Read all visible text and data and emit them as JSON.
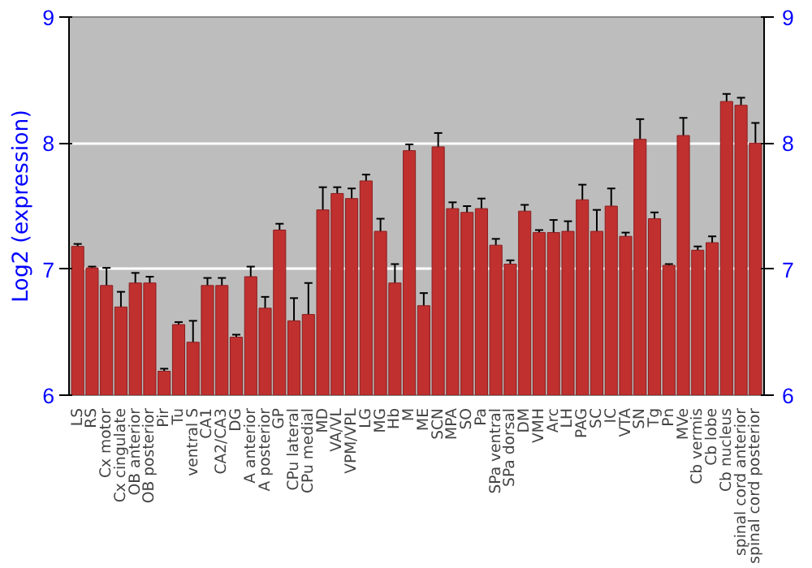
{
  "chart_data": {
    "type": "bar",
    "ylabel": "Log2 (expression)",
    "categories": [
      "LS",
      "RS",
      "Cx motor",
      "Cx cingulate",
      "OB anterior",
      "OB posterior",
      "Pir",
      "Tu",
      "ventral S",
      "CA1",
      "CA2/CA3",
      "DG",
      "A anterior",
      "A posterior",
      "GP",
      "CPu lateral",
      "CPu medial",
      "MD",
      "VA/VL",
      "VPM/VPL",
      "LG",
      "MG",
      "Hb",
      "M",
      "ME",
      "SCN",
      "MPA",
      "SO",
      "Pa",
      "SPa ventral",
      "SPa dorsal",
      "DM",
      "VMH",
      "Arc",
      "LH",
      "PAG",
      "SC",
      "IC",
      "VTA",
      "SN",
      "Tg",
      "Pn",
      "MVe",
      "Cb vermis",
      "Cb lobe",
      "Cb nucleus",
      "spinal cord anterior",
      "spinal cord posterior"
    ],
    "values": [
      7.18,
      7.01,
      6.87,
      6.7,
      6.89,
      6.89,
      6.19,
      6.56,
      6.42,
      6.87,
      6.87,
      6.46,
      6.94,
      6.69,
      7.31,
      6.59,
      6.64,
      7.47,
      7.6,
      7.56,
      7.7,
      7.3,
      6.89,
      7.94,
      6.71,
      7.97,
      7.48,
      7.45,
      7.48,
      7.19,
      7.04,
      7.46,
      7.29,
      7.29,
      7.3,
      7.55,
      7.3,
      7.5,
      7.26,
      8.03,
      7.4,
      7.03,
      8.06,
      7.15,
      7.21,
      8.33,
      8.3,
      8.0
    ],
    "errors": [
      0.02,
      0.01,
      0.14,
      0.12,
      0.08,
      0.05,
      0.02,
      0.02,
      0.17,
      0.06,
      0.06,
      0.02,
      0.08,
      0.09,
      0.05,
      0.18,
      0.25,
      0.18,
      0.05,
      0.08,
      0.05,
      0.1,
      0.15,
      0.05,
      0.1,
      0.11,
      0.05,
      0.05,
      0.08,
      0.05,
      0.03,
      0.05,
      0.02,
      0.1,
      0.08,
      0.12,
      0.17,
      0.14,
      0.03,
      0.16,
      0.05,
      0.01,
      0.14,
      0.03,
      0.05,
      0.06,
      0.06,
      0.16
    ],
    "color": "#c0302f",
    "ylim": [
      6,
      9
    ],
    "yticks": [
      6,
      7,
      8,
      9
    ],
    "y2lim": [
      6,
      9
    ],
    "y2ticks": [
      6,
      7,
      8,
      9
    ],
    "grid": "y"
  }
}
